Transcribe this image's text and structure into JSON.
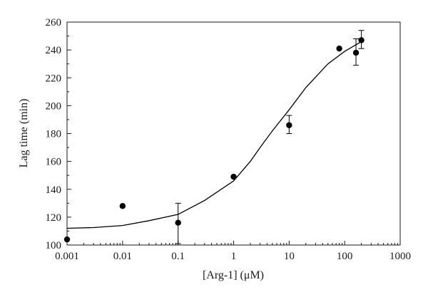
{
  "chart_data": {
    "type": "scatter",
    "title": "",
    "xlabel": "[Arg-1] (μM)",
    "ylabel": "Lag time (min)",
    "xscale": "log",
    "xlim": [
      0.001,
      1000
    ],
    "ylim": [
      100,
      260
    ],
    "grid": false,
    "legend": "none",
    "x_ticks": [
      0.001,
      0.01,
      0.1,
      1,
      10,
      100,
      1000
    ],
    "x_tick_labels": [
      "0.001",
      "0.01",
      "0.1",
      "1",
      "10",
      "100",
      "1000"
    ],
    "y_ticks": [
      100,
      120,
      140,
      160,
      180,
      200,
      220,
      240,
      260
    ],
    "y_tick_labels": [
      "100",
      "120",
      "140",
      "160",
      "180",
      "200",
      "220",
      "240",
      "260"
    ],
    "points": [
      {
        "x": 0.001,
        "y": 104
      },
      {
        "x": 0.01,
        "y": 128
      },
      {
        "x": 0.1,
        "y": 116,
        "err_low": 101,
        "err_high": 130
      },
      {
        "x": 1,
        "y": 149
      },
      {
        "x": 10,
        "y": 186,
        "err_low": 180,
        "err_high": 193
      },
      {
        "x": 80,
        "y": 241
      },
      {
        "x": 160,
        "y": 238,
        "err_low": 229,
        "err_high": 248
      },
      {
        "x": 200,
        "y": 247,
        "err_low": 241,
        "err_high": 254
      }
    ],
    "fit_curve": {
      "x": [
        0.001,
        0.003,
        0.01,
        0.03,
        0.1,
        0.3,
        1,
        2,
        3,
        5,
        10,
        20,
        50,
        100,
        200
      ],
      "y": [
        112,
        112.5,
        114,
        117.5,
        122,
        132,
        146,
        160,
        170,
        182,
        197,
        213,
        230,
        239,
        246
      ]
    },
    "colors": {
      "marker": "#000000",
      "line": "#000000",
      "axis": "#1a1a1a"
    }
  }
}
